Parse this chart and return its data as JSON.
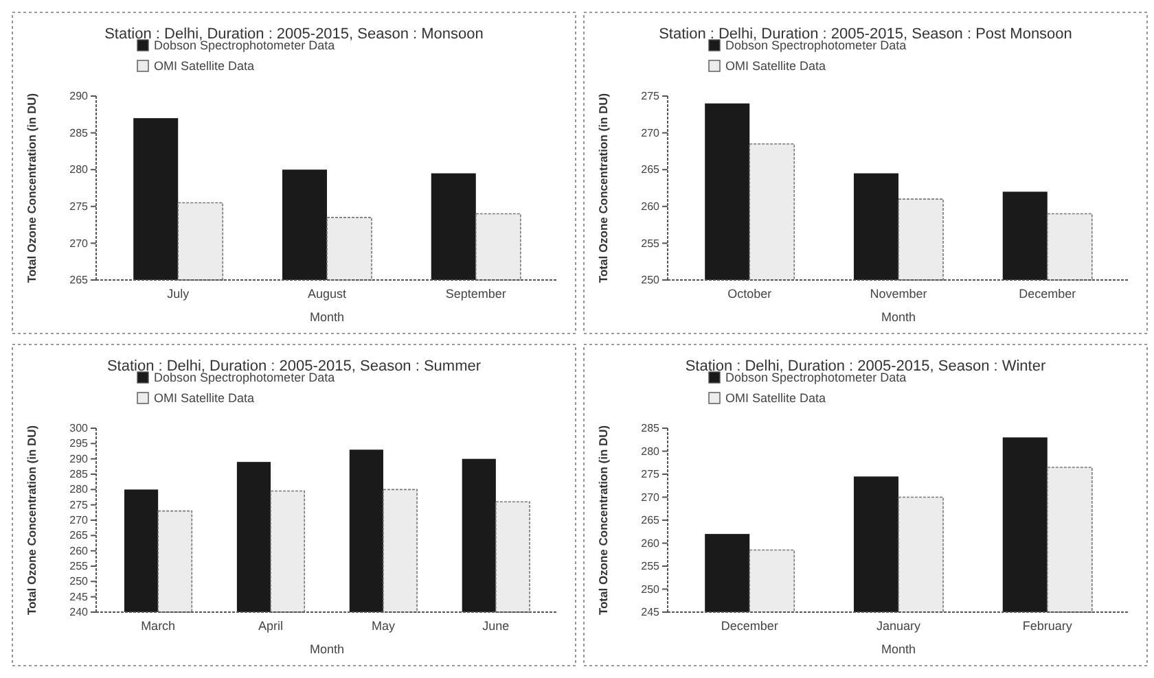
{
  "chart_data": [
    {
      "type": "bar",
      "title": "Station : Delhi, Duration : 2005-2015, Season : Monsoon",
      "xlabel": "Month",
      "ylabel": "Total Ozone Concentration (in DU)",
      "categories": [
        "July",
        "August",
        "September"
      ],
      "series": [
        {
          "name": "Dobson Spectrophotometer Data",
          "color": "#1a1a1a",
          "values": [
            287,
            280,
            279.5
          ]
        },
        {
          "name": "OMI Satellite Data",
          "color": "#ececec",
          "values": [
            275.5,
            273.5,
            274
          ]
        }
      ],
      "ylim": [
        265,
        290
      ],
      "yticks": [
        265,
        270,
        275,
        280,
        285,
        290
      ],
      "legend": "top left",
      "grid": false
    },
    {
      "type": "bar",
      "title": "Station : Delhi, Duration : 2005-2015, Season : Post Monsoon",
      "xlabel": "Month",
      "ylabel": "Total Ozone Concentration (in DU)",
      "categories": [
        "October",
        "November",
        "December"
      ],
      "series": [
        {
          "name": "Dobson Spectrophotometer Data",
          "color": "#1a1a1a",
          "values": [
            274,
            264.5,
            262
          ]
        },
        {
          "name": "OMI Satellite Data",
          "color": "#ececec",
          "values": [
            268.5,
            261,
            259
          ]
        }
      ],
      "ylim": [
        250,
        275
      ],
      "yticks": [
        250,
        255,
        260,
        265,
        270,
        275
      ],
      "legend": "top left",
      "grid": false
    },
    {
      "type": "bar",
      "title": "Station : Delhi, Duration : 2005-2015, Season : Summer",
      "xlabel": "Month",
      "ylabel": "Total Ozone Concentration (in DU)",
      "categories": [
        "March",
        "April",
        "May",
        "June"
      ],
      "series": [
        {
          "name": "Dobson Spectrophotometer Data",
          "color": "#1a1a1a",
          "values": [
            280,
            289,
            293,
            290
          ]
        },
        {
          "name": "OMI Satellite Data",
          "color": "#ececec",
          "values": [
            273,
            279.5,
            280,
            276
          ]
        }
      ],
      "ylim": [
        240,
        300
      ],
      "yticks": [
        240,
        245,
        250,
        255,
        260,
        265,
        270,
        275,
        280,
        285,
        290,
        295,
        300
      ],
      "legend": "top left",
      "grid": false
    },
    {
      "type": "bar",
      "title": "Station : Delhi, Duration : 2005-2015, Season : Winter",
      "xlabel": "Month",
      "ylabel": "Total Ozone Concentration (in DU)",
      "categories": [
        "December",
        "January",
        "February"
      ],
      "series": [
        {
          "name": "Dobson Spectrophotometer Data",
          "color": "#1a1a1a",
          "values": [
            262,
            274.5,
            283
          ]
        },
        {
          "name": "OMI Satellite Data",
          "color": "#ececec",
          "values": [
            258.5,
            270,
            276.5
          ]
        }
      ],
      "ylim": [
        245,
        285
      ],
      "yticks": [
        245,
        250,
        255,
        260,
        265,
        270,
        275,
        280,
        285
      ],
      "legend": "top left",
      "grid": false
    }
  ]
}
